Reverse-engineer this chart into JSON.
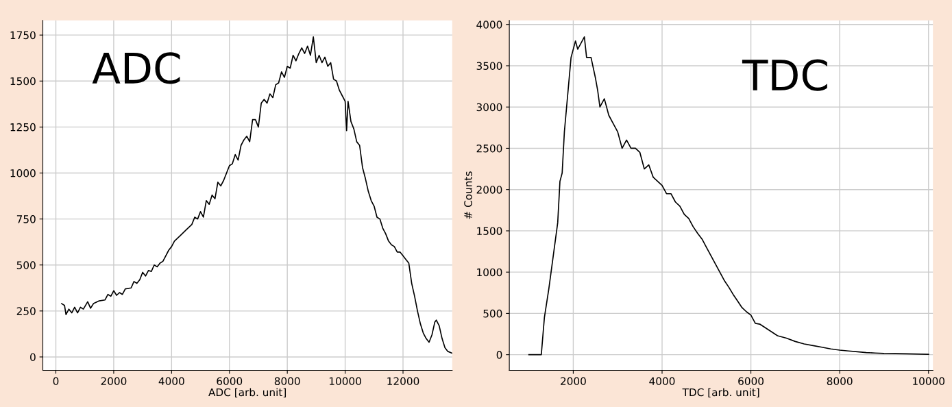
{
  "chart_data": [
    {
      "type": "line",
      "xlabel": "ADC [arb. unit]",
      "annotations": [
        "ADC"
      ],
      "grid": true,
      "xlim": [
        -450,
        13700
      ],
      "ylim": [
        -73,
        1830
      ],
      "xticks": [
        0,
        2000,
        4000,
        6000,
        8000,
        10000,
        12000
      ],
      "yticks": [
        0,
        250,
        500,
        750,
        1000,
        1250,
        1500,
        1750
      ],
      "series": [
        {
          "color": "#000000",
          "x": [
            200,
            300,
            350,
            450,
            550,
            650,
            750,
            850,
            950,
            1100,
            1200,
            1300,
            1500,
            1700,
            1800,
            1900,
            2000,
            2100,
            2200,
            2300,
            2400,
            2600,
            2700,
            2800,
            2900,
            3000,
            3100,
            3200,
            3300,
            3400,
            3500,
            3600,
            3700,
            3800,
            3900,
            4000,
            4100,
            4300,
            4500,
            4700,
            4800,
            4900,
            5000,
            5100,
            5200,
            5300,
            5400,
            5500,
            5600,
            5700,
            5800,
            6000,
            6100,
            6200,
            6300,
            6400,
            6500,
            6600,
            6700,
            6800,
            6900,
            7000,
            7100,
            7200,
            7300,
            7400,
            7500,
            7600,
            7700,
            7800,
            7900,
            8000,
            8100,
            8200,
            8300,
            8400,
            8500,
            8600,
            8700,
            8800,
            8900,
            9000,
            9100,
            9200,
            9300,
            9400,
            9500,
            9600,
            9700,
            9800,
            9900,
            10000,
            10050,
            10100,
            10200,
            10300,
            10400,
            10500,
            10600,
            10700,
            10800,
            10900,
            11000,
            11100,
            11200,
            11300,
            11400,
            11500,
            11600,
            11700,
            11800,
            11900,
            12000,
            12100,
            12200,
            12300,
            12400,
            12500,
            12600,
            12700,
            12800,
            12900,
            13000,
            13100,
            13150,
            13250,
            13350,
            13450,
            13550,
            13700
          ],
          "values": [
            290,
            280,
            230,
            260,
            240,
            270,
            240,
            270,
            260,
            300,
            265,
            290,
            305,
            310,
            340,
            330,
            360,
            335,
            350,
            340,
            370,
            375,
            410,
            400,
            420,
            460,
            440,
            470,
            465,
            500,
            490,
            510,
            520,
            550,
            580,
            600,
            630,
            660,
            690,
            720,
            760,
            750,
            790,
            760,
            850,
            830,
            880,
            860,
            950,
            930,
            960,
            1040,
            1050,
            1100,
            1070,
            1150,
            1180,
            1200,
            1170,
            1290,
            1290,
            1250,
            1380,
            1400,
            1380,
            1430,
            1410,
            1480,
            1490,
            1550,
            1520,
            1580,
            1570,
            1640,
            1610,
            1650,
            1680,
            1650,
            1690,
            1640,
            1740,
            1600,
            1640,
            1600,
            1630,
            1580,
            1600,
            1510,
            1500,
            1450,
            1420,
            1390,
            1230,
            1390,
            1280,
            1240,
            1170,
            1150,
            1030,
            970,
            900,
            850,
            820,
            760,
            750,
            700,
            670,
            630,
            610,
            600,
            570,
            570,
            550,
            530,
            510,
            400,
            330,
            250,
            180,
            130,
            100,
            80,
            120,
            190,
            200,
            170,
            100,
            50,
            30,
            20
          ]
        }
      ]
    },
    {
      "type": "line",
      "xlabel": "TDC [arb. unit]",
      "ylabel": "# Counts",
      "annotations": [
        "TDC"
      ],
      "grid": true,
      "xlim": [
        560,
        10100
      ],
      "ylim": [
        -190,
        4050
      ],
      "xticks": [
        2000,
        4000,
        6000,
        8000,
        10000
      ],
      "yticks": [
        0,
        500,
        1000,
        1500,
        2000,
        2500,
        3000,
        3500,
        4000
      ],
      "series": [
        {
          "color": "#000000",
          "x": [
            1000,
            1280,
            1350,
            1450,
            1550,
            1650,
            1700,
            1750,
            1800,
            1850,
            1900,
            1950,
            2000,
            2050,
            2100,
            2200,
            2250,
            2300,
            2400,
            2500,
            2550,
            2600,
            2700,
            2800,
            2900,
            3000,
            3100,
            3200,
            3300,
            3400,
            3500,
            3600,
            3700,
            3800,
            3900,
            4000,
            4100,
            4200,
            4300,
            4400,
            4500,
            4600,
            4700,
            4800,
            4900,
            5000,
            5100,
            5200,
            5300,
            5400,
            5500,
            5600,
            5700,
            5800,
            5900,
            6000,
            6100,
            6200,
            6400,
            6600,
            6800,
            7000,
            7200,
            7400,
            7600,
            7800,
            8000,
            8200,
            8400,
            8600,
            8800,
            9000,
            9500,
            10000
          ],
          "values": [
            0,
            0,
            450,
            800,
            1200,
            1600,
            2100,
            2200,
            2700,
            3000,
            3300,
            3600,
            3700,
            3800,
            3700,
            3800,
            3850,
            3600,
            3600,
            3350,
            3200,
            3000,
            3100,
            2900,
            2800,
            2700,
            2500,
            2600,
            2500,
            2500,
            2450,
            2250,
            2300,
            2150,
            2100,
            2050,
            1950,
            1950,
            1850,
            1800,
            1700,
            1650,
            1550,
            1470,
            1400,
            1300,
            1200,
            1100,
            1000,
            900,
            820,
            730,
            650,
            570,
            520,
            480,
            380,
            370,
            300,
            230,
            200,
            160,
            130,
            110,
            90,
            70,
            55,
            45,
            35,
            25,
            20,
            15,
            10,
            5
          ]
        }
      ]
    }
  ]
}
